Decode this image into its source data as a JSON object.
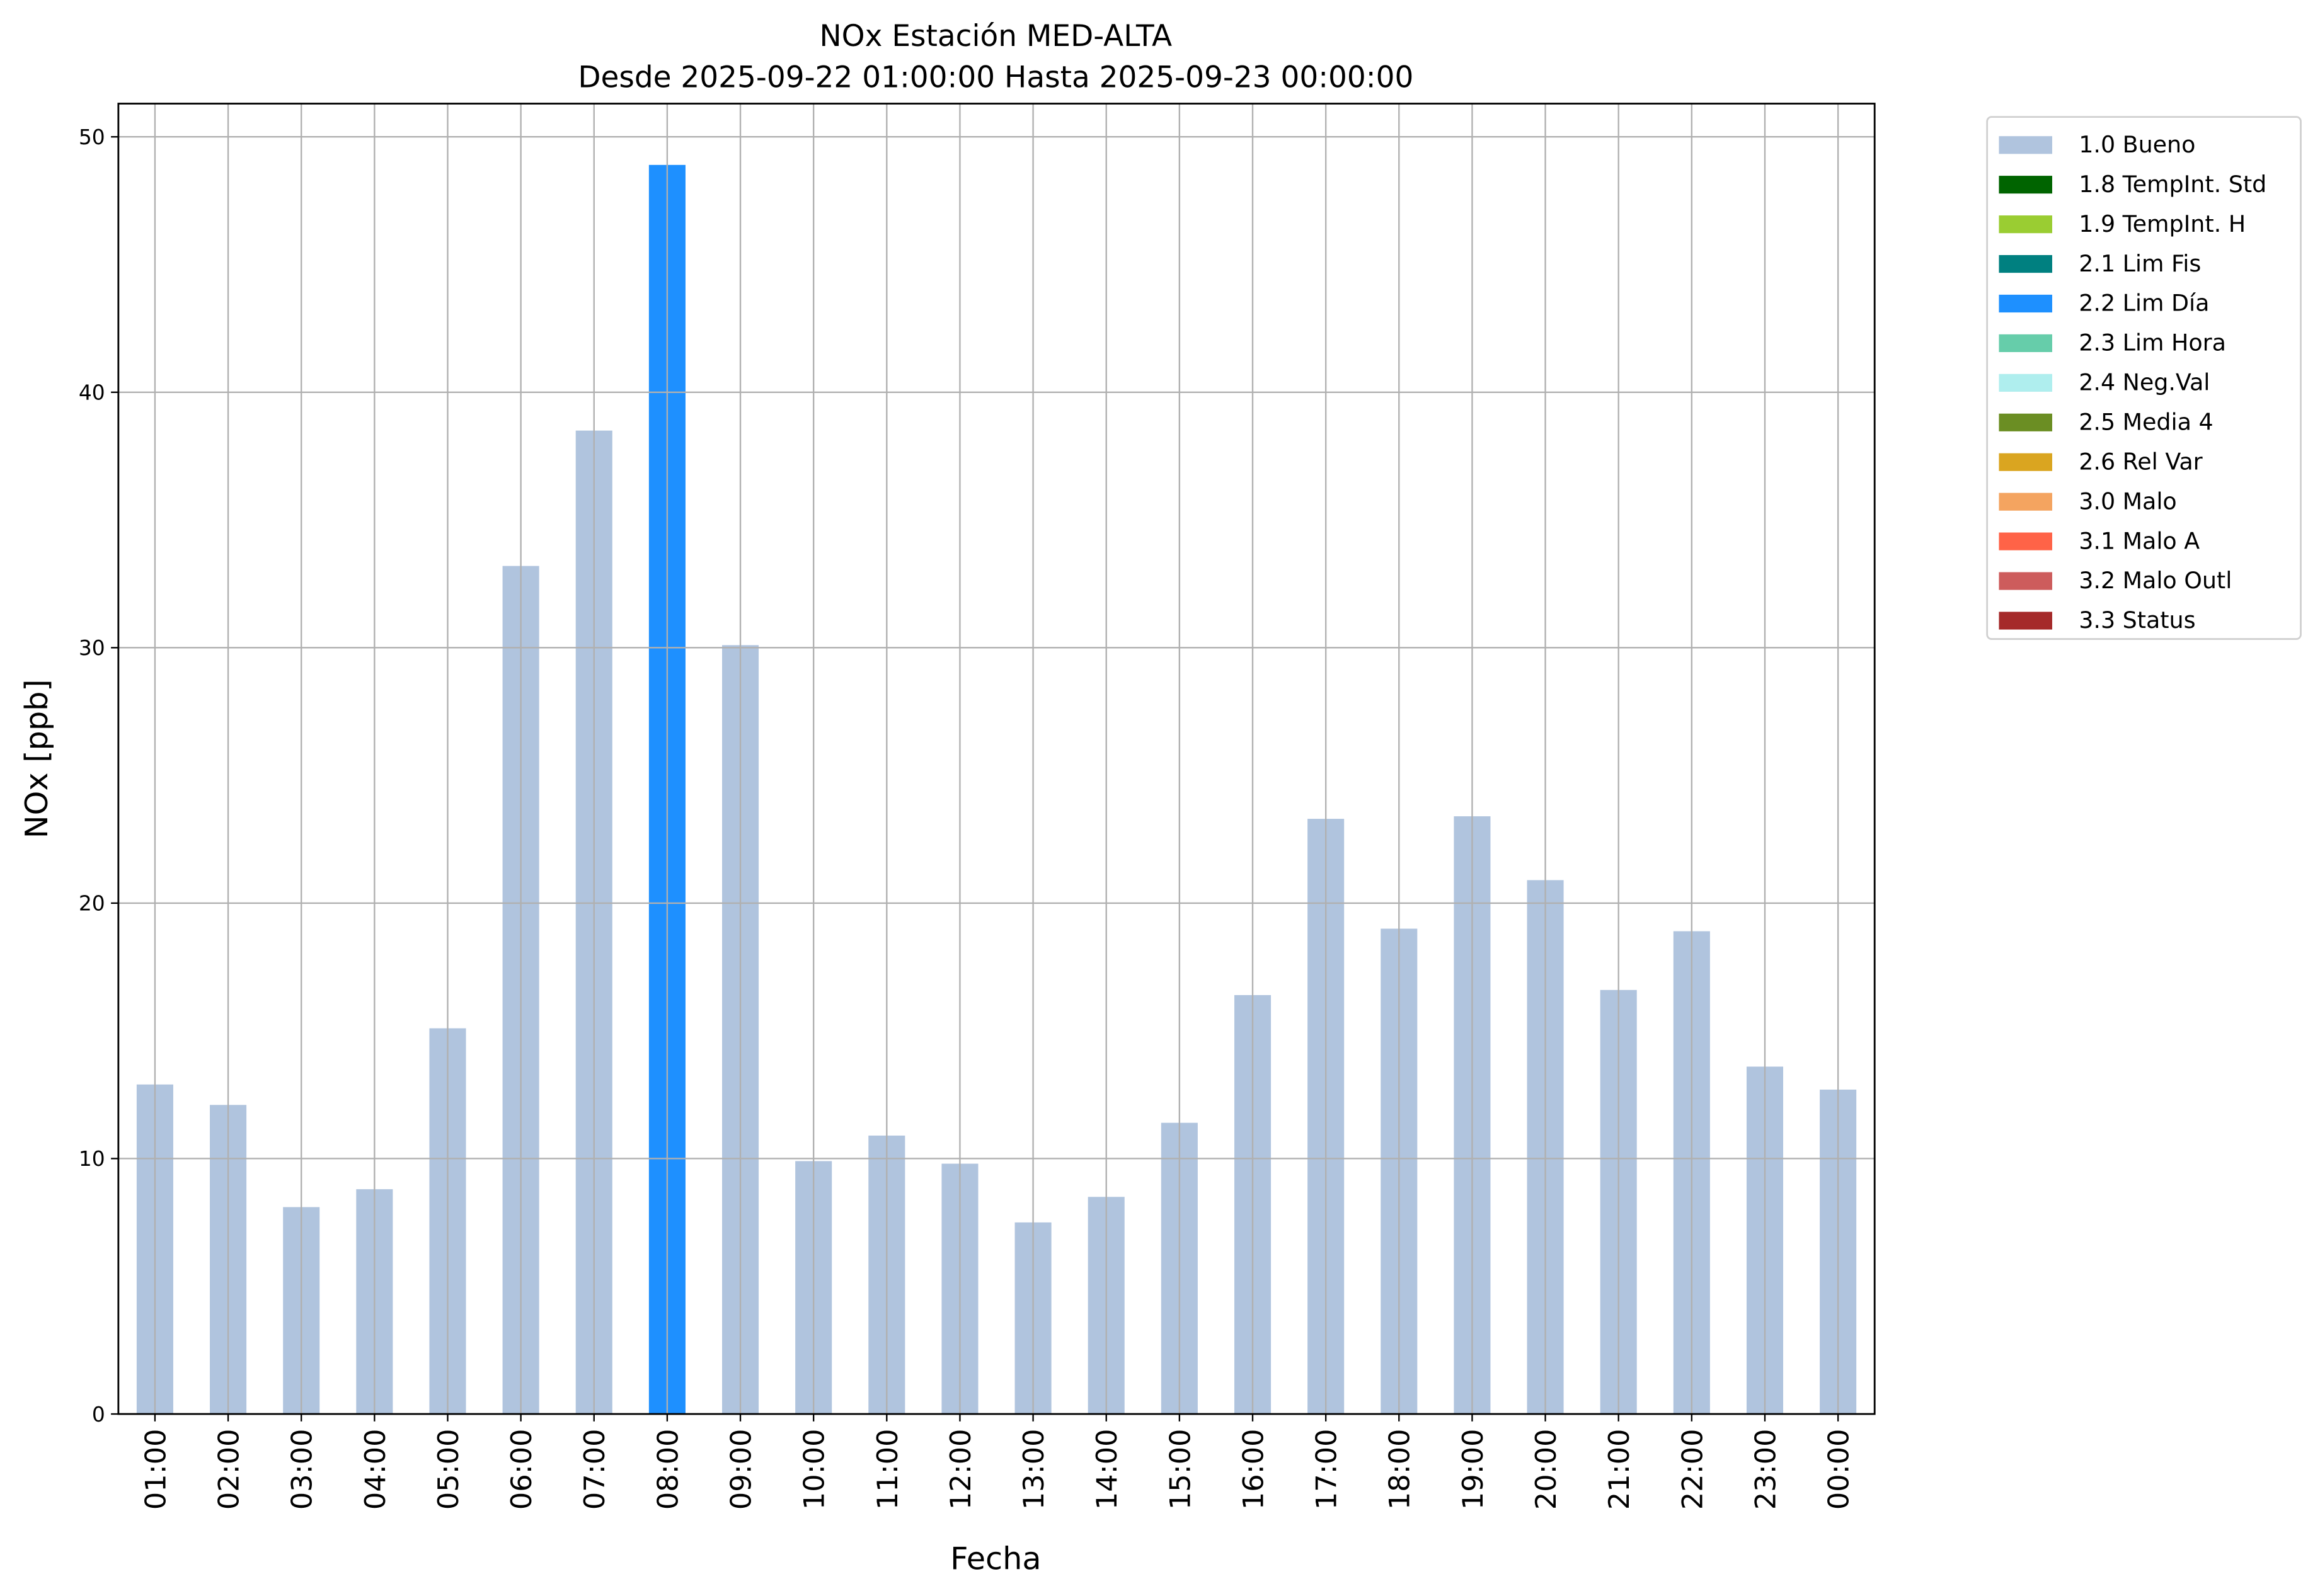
{
  "chart_data": {
    "type": "bar",
    "title": "NOx Estación MED-ALTA",
    "subtitle": "Desde 2025-09-22 01:00:00 Hasta 2025-09-23 00:00:00",
    "xlabel": "Fecha",
    "ylabel": "NOx [ppb]",
    "ylim": [
      0,
      51.3
    ],
    "yticks": [
      0,
      10,
      20,
      30,
      40,
      50
    ],
    "grid": true,
    "legend_position": "outside-top-right",
    "categories": [
      "01:00",
      "02:00",
      "03:00",
      "04:00",
      "05:00",
      "06:00",
      "07:00",
      "08:00",
      "09:00",
      "10:00",
      "11:00",
      "12:00",
      "13:00",
      "14:00",
      "15:00",
      "16:00",
      "17:00",
      "18:00",
      "19:00",
      "20:00",
      "21:00",
      "22:00",
      "23:00",
      "00:00"
    ],
    "values": [
      12.9,
      12.1,
      8.1,
      8.8,
      15.1,
      33.2,
      38.5,
      48.9,
      30.1,
      9.9,
      10.9,
      9.8,
      7.5,
      8.5,
      11.4,
      16.4,
      23.3,
      19.0,
      23.4,
      20.9,
      16.6,
      18.9,
      13.6,
      12.7
    ],
    "flags": [
      "1.0 Bueno",
      "1.0 Bueno",
      "1.0 Bueno",
      "1.0 Bueno",
      "1.0 Bueno",
      "1.0 Bueno",
      "1.0 Bueno",
      "2.2 Lim Día",
      "1.0 Bueno",
      "1.0 Bueno",
      "1.0 Bueno",
      "1.0 Bueno",
      "1.0 Bueno",
      "1.0 Bueno",
      "1.0 Bueno",
      "1.0 Bueno",
      "1.0 Bueno",
      "1.0 Bueno",
      "1.0 Bueno",
      "1.0 Bueno",
      "1.0 Bueno",
      "1.0 Bueno",
      "1.0 Bueno",
      "1.0 Bueno"
    ],
    "legend": [
      {
        "label": "1.0 Bueno",
        "color": "#b0c4de"
      },
      {
        "label": "1.8 TempInt. Std",
        "color": "#006400"
      },
      {
        "label": "1.9 TempInt. H",
        "color": "#9acd32"
      },
      {
        "label": "2.1 Lim Fis",
        "color": "#008080"
      },
      {
        "label": "2.2 Lim Día",
        "color": "#1e90ff"
      },
      {
        "label": "2.3 Lim Hora",
        "color": "#66cdaa"
      },
      {
        "label": "2.4 Neg.Val",
        "color": "#afeeee"
      },
      {
        "label": "2.5 Media 4",
        "color": "#6b8e23"
      },
      {
        "label": "2.6 Rel Var",
        "color": "#daa520"
      },
      {
        "label": "3.0 Malo",
        "color": "#f4a460"
      },
      {
        "label": "3.1 Malo A",
        "color": "#ff6347"
      },
      {
        "label": "3.2 Malo Outl",
        "color": "#cd5c5c"
      },
      {
        "label": "3.3 Status",
        "color": "#a52a2a"
      }
    ]
  }
}
